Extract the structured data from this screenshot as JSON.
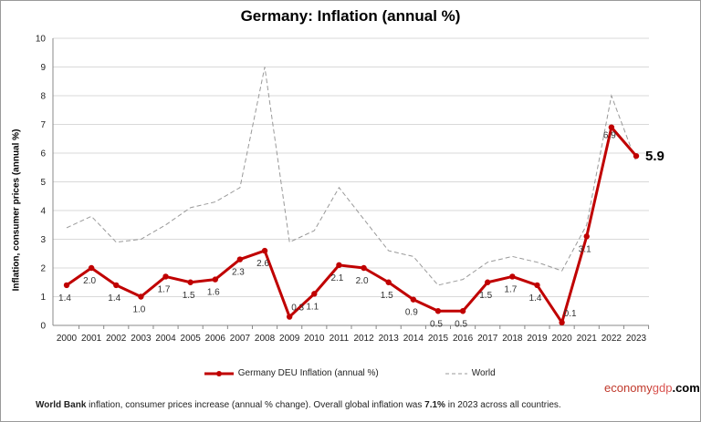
{
  "chart_data": {
    "type": "line",
    "title": "Germany:  Inflation (annual %)",
    "ylabel": "Inflation, consumer prices (annual %)",
    "xlabel": "",
    "ylim": [
      0,
      10
    ],
    "yticks": [
      0,
      1,
      2,
      3,
      4,
      5,
      6,
      7,
      8,
      9,
      10
    ],
    "grid": true,
    "legend_position": "bottom",
    "x": [
      "2000",
      "2001",
      "2002",
      "2003",
      "2004",
      "2005",
      "2006",
      "2007",
      "2008",
      "2009",
      "2010",
      "2011",
      "2012",
      "2013",
      "2014",
      "2015",
      "2016",
      "2017",
      "2018",
      "2019",
      "2020",
      "2021",
      "2022",
      "2023"
    ],
    "series": [
      {
        "name": "Germany DEU Inflation (annual %)",
        "color": "#c00000",
        "labels": [
          "1.4",
          "2.0",
          "1.4",
          "1.0",
          "1.7",
          "1.5",
          "1.6",
          "2.3",
          "2.6",
          "0.3",
          "1.1",
          "2.1",
          "2.0",
          "1.5",
          "0.9",
          "0.5",
          "0.5",
          "1.5",
          "1.7",
          "1.4",
          "0.1",
          "3.1",
          "6.9",
          "5.9"
        ],
        "values": [
          1.4,
          2.0,
          1.4,
          1.0,
          1.7,
          1.5,
          1.6,
          2.3,
          2.6,
          0.3,
          1.1,
          2.1,
          2.0,
          1.5,
          0.9,
          0.5,
          0.5,
          1.5,
          1.7,
          1.4,
          0.1,
          3.1,
          6.9,
          5.9
        ]
      },
      {
        "name": "World",
        "color": "#999999",
        "values": [
          3.4,
          3.8,
          2.9,
          3.0,
          3.5,
          4.1,
          4.3,
          4.8,
          9.0,
          2.9,
          3.3,
          4.8,
          3.7,
          2.6,
          2.4,
          1.4,
          1.6,
          2.2,
          2.4,
          2.2,
          1.9,
          3.5,
          8.0,
          5.7
        ]
      }
    ],
    "last_value_label": "5.9"
  },
  "brand": {
    "part1": "economy",
    "part2": "gdp",
    "part3": ".com"
  },
  "footer": {
    "t1": "World Bank",
    "t2": " inflation, consumer prices increase (annual  % change).   Overall  global  inflation was ",
    "t3": "7.1%",
    "t4": " in 2023 across all countries."
  }
}
